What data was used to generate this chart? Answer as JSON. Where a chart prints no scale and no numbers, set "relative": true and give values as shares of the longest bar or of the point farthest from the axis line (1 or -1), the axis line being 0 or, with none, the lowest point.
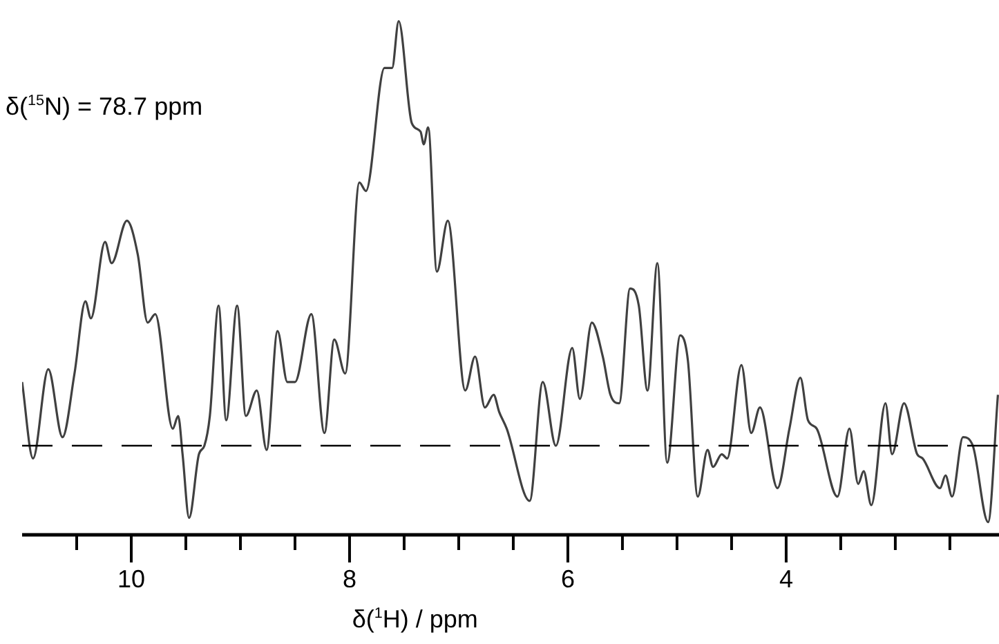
{
  "chart_data": {
    "type": "line",
    "relative": true,
    "xlabel": "δ($^{1}$H) / ppm",
    "annotations": [
      "δ($^{15}$N) = 78.7 ppm"
    ],
    "marker": "none",
    "grid": false,
    "legend": false,
    "tick_labels": "x",
    "xlim": [
      11,
      2.05
    ],
    "xticks": [
      {
        "value": 10.5,
        "label": null
      },
      10,
      {
        "value": 9.5,
        "label": null
      },
      {
        "value": 9,
        "label": null
      },
      {
        "value": 8.5,
        "label": null
      },
      8,
      {
        "value": 7.5,
        "label": null
      },
      {
        "value": 7,
        "label": null
      },
      {
        "value": 6.5,
        "label": null
      },
      6,
      {
        "value": 5.5,
        "label": null
      },
      {
        "value": 5,
        "label": null
      },
      {
        "value": 4.5,
        "label": null
      },
      4,
      {
        "value": 3.5,
        "label": null
      },
      {
        "value": 3,
        "label": null
      },
      {
        "value": 2.5,
        "label": null
      }
    ],
    "ref_lines": [
      {
        "axis": "y",
        "value": 0,
        "color": "#000000",
        "line_style": "dashed"
      }
    ],
    "series": [
      {
        "color": "#404040",
        "x": [
          11,
          10.9,
          10.76,
          10.63,
          10.52,
          10.42,
          10.37,
          10.24,
          10.18,
          10.04,
          9.94,
          9.85,
          9.78,
          9.62,
          9.57,
          9.53,
          9.47,
          9.38,
          9.33,
          9.28,
          9.2,
          9.13,
          9.03,
          8.95,
          8.85,
          8.76,
          8.66,
          8.57,
          8.5,
          8.35,
          8.23,
          8.14,
          8.04,
          7.91,
          7.85,
          7.68,
          7.61,
          7.55,
          7.43,
          7.35,
          7.32,
          7.28,
          7.2,
          7.1,
          6.94,
          6.85,
          6.76,
          6.68,
          6.63,
          6.56,
          6.35,
          6.23,
          6.11,
          5.96,
          5.89,
          5.78,
          5.68,
          5.61,
          5.53,
          5.43,
          5.35,
          5.27,
          5.18,
          5.09,
          4.97,
          4.9,
          4.81,
          4.72,
          4.67,
          4.59,
          4.54,
          4.41,
          4.32,
          4.24,
          4.08,
          3.97,
          3.87,
          3.8,
          3.72,
          3.53,
          3.42,
          3.34,
          3.29,
          3.22,
          3.09,
          3.03,
          2.92,
          2.8,
          2.75,
          2.59,
          2.54,
          2.48,
          2.38,
          2.29,
          2.15,
          2.06
        ],
        "values": [
          0.15,
          -0.03,
          0.18,
          0.02,
          0.17,
          0.34,
          0.3,
          0.48,
          0.43,
          0.53,
          0.45,
          0.29,
          0.31,
          0.04,
          0.07,
          -0.02,
          -0.17,
          -0.02,
          0,
          0.07,
          0.33,
          0.06,
          0.33,
          0.07,
          0.13,
          -0.01,
          0.27,
          0.15,
          0.15,
          0.31,
          0.03,
          0.25,
          0.17,
          0.62,
          0.6,
          0.89,
          0.89,
          1,
          0.76,
          0.74,
          0.71,
          0.75,
          0.41,
          0.53,
          0.13,
          0.21,
          0.09,
          0.12,
          0.08,
          0.04,
          -0.13,
          0.15,
          0,
          0.23,
          0.11,
          0.29,
          0.21,
          0.12,
          0.1,
          0.37,
          0.33,
          0.13,
          0.43,
          -0.04,
          0.26,
          0.2,
          -0.12,
          -0.01,
          -0.05,
          -0.02,
          -0.03,
          0.19,
          0.03,
          0.09,
          -0.1,
          0.04,
          0.16,
          0.06,
          0.04,
          -0.12,
          0.04,
          -0.09,
          -0.06,
          -0.14,
          0.1,
          -0.02,
          0.1,
          -0.02,
          -0.03,
          -0.1,
          -0.07,
          -0.12,
          0.02,
          0,
          -0.18,
          0.12
        ]
      }
    ]
  }
}
